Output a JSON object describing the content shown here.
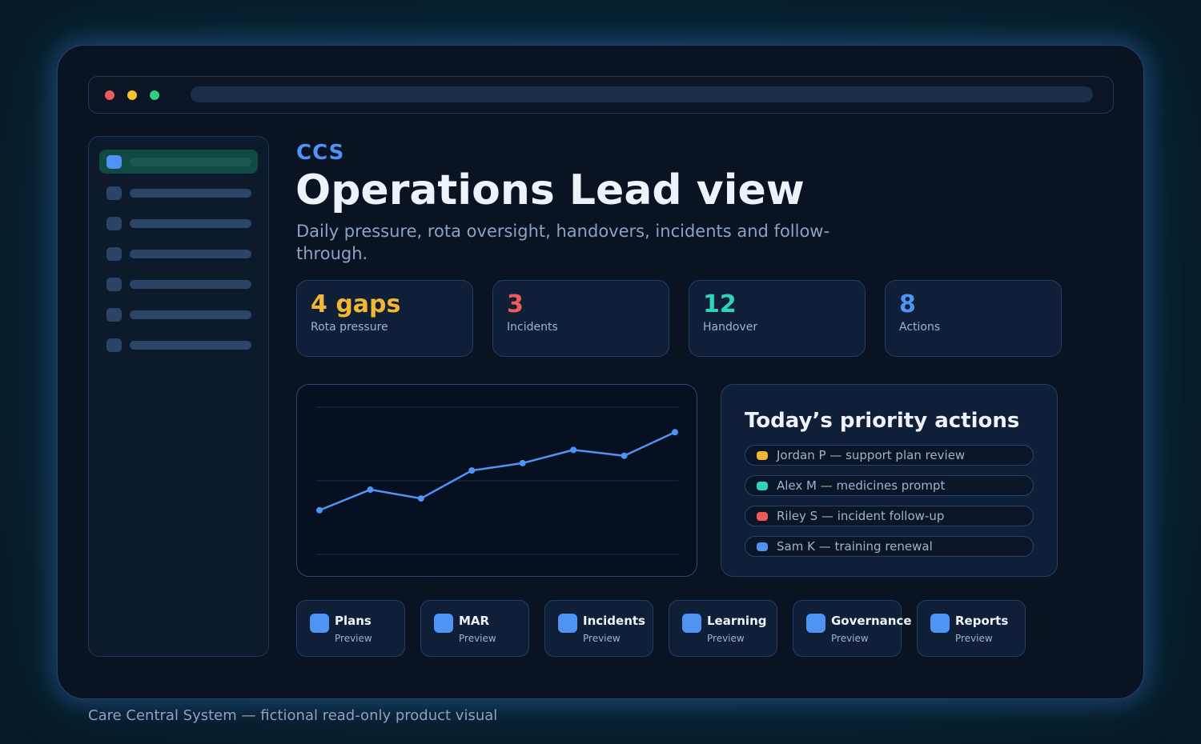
{
  "colors": {
    "accent": "#4f93f5",
    "amber": "#f1b734",
    "red": "#ef5a5a",
    "teal": "#2dd4b8",
    "window_red": "#ef5a5a",
    "window_yellow": "#f5c12e",
    "window_green": "#2fcf7f"
  },
  "header": {
    "brand": "CCS",
    "title": "Operations Lead view",
    "subtitle": "Daily pressure, rota oversight, handovers, incidents and follow-through."
  },
  "stats": [
    {
      "value": "4 gaps",
      "label": "Rota pressure",
      "color": "#f1b734"
    },
    {
      "value": "3",
      "label": "Incidents",
      "color": "#ef5a5a"
    },
    {
      "value": "12",
      "label": "Handover",
      "color": "#2dd4b8"
    },
    {
      "value": "8",
      "label": "Actions",
      "color": "#4f93f5"
    }
  ],
  "chart_data": {
    "type": "line",
    "title": "",
    "xlabel": "",
    "ylabel": "",
    "grid": true,
    "x": [
      1,
      2,
      3,
      4,
      5,
      6,
      7,
      8
    ],
    "series": [
      {
        "values": [
          30,
          44,
          38,
          57,
          62,
          71,
          67,
          83
        ]
      }
    ],
    "ylim": [
      0,
      100
    ]
  },
  "priority": {
    "title": "Today’s priority actions",
    "items": [
      {
        "text": "Jordan P — support plan review",
        "color": "#f1b734"
      },
      {
        "text": "Alex M — medicines prompt",
        "color": "#2dd4b8"
      },
      {
        "text": "Riley S — incident follow-up",
        "color": "#ef5a5a"
      },
      {
        "text": "Sam K — training renewal",
        "color": "#4f93f5"
      }
    ]
  },
  "tiles": [
    {
      "name": "Plans",
      "sub": "Preview"
    },
    {
      "name": "MAR",
      "sub": "Preview"
    },
    {
      "name": "Incidents",
      "sub": "Preview"
    },
    {
      "name": "Learning",
      "sub": "Preview"
    },
    {
      "name": "Governance",
      "sub": "Preview"
    },
    {
      "name": "Reports",
      "sub": "Preview"
    }
  ],
  "footer": "Care Central System — fictional read-only product visual"
}
